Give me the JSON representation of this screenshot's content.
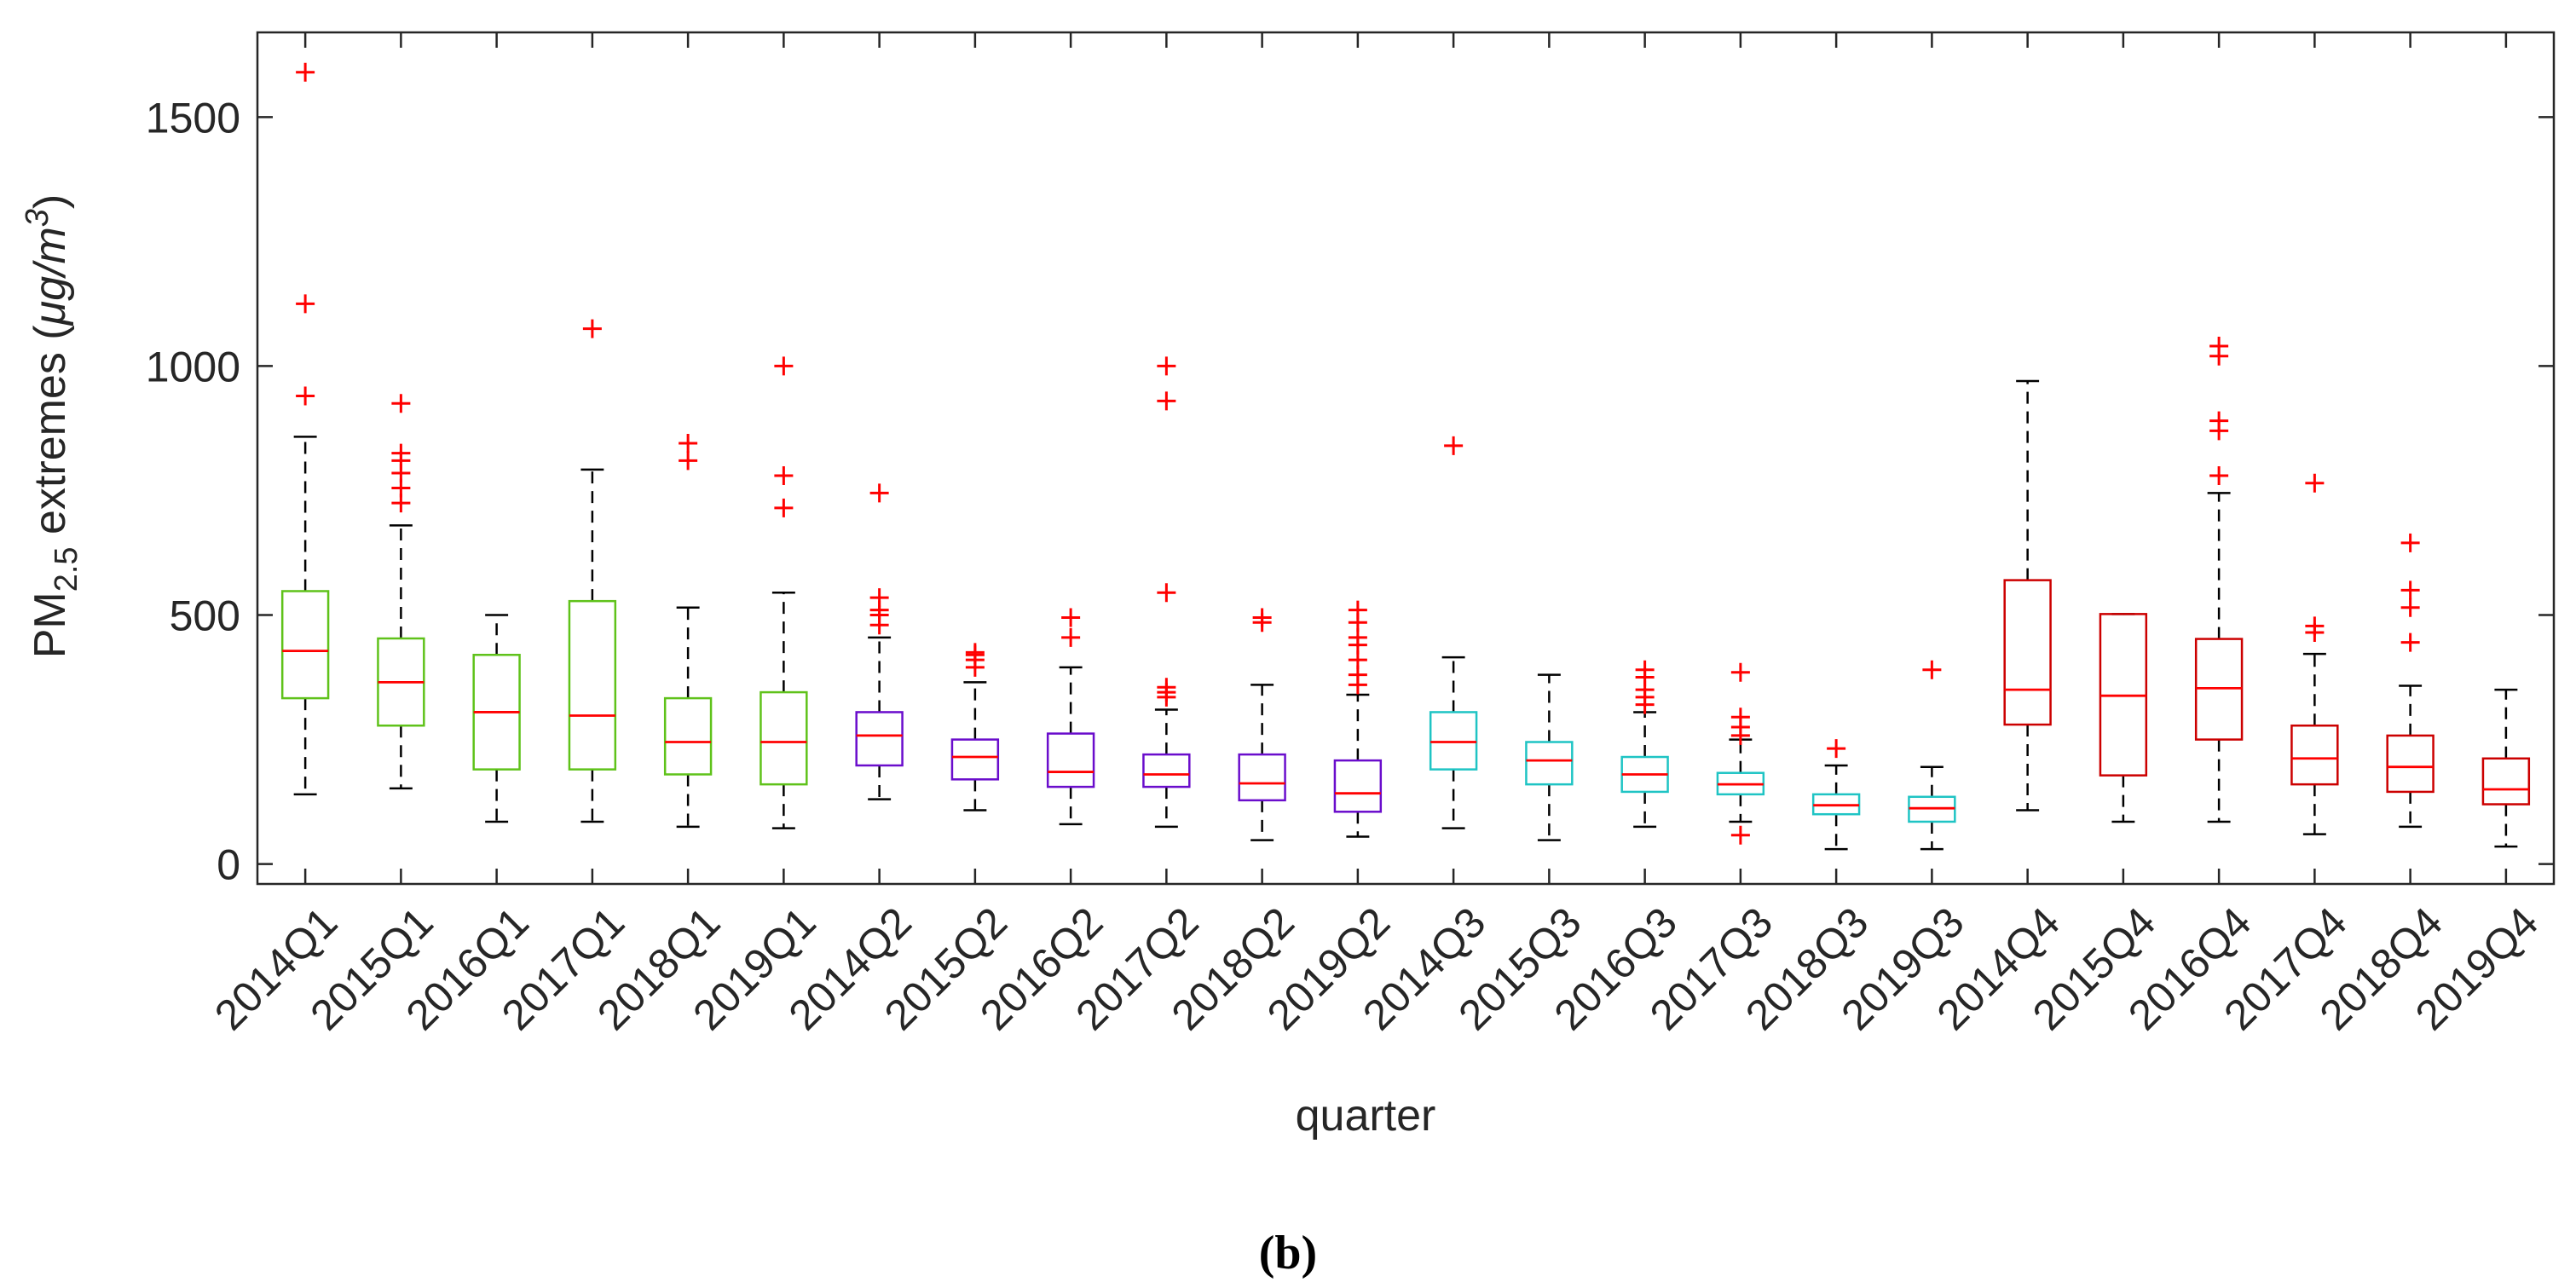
{
  "chart_data": {
    "type": "boxplot",
    "title": "",
    "xlabel": "quarter",
    "ylabel_parts": {
      "base": "PM",
      "sub": "2.5",
      "rest": " extremes (",
      "unit_mu": "μg/m",
      "unit_sup": "3",
      "close": ")"
    },
    "ylim": [
      -40,
      1670
    ],
    "yticks": [
      0,
      500,
      1000,
      1500
    ],
    "grid": false,
    "median_color": "#ff0000",
    "whisker_color": "#000000",
    "outlier_color": "#ff0000",
    "outlier_marker": "+",
    "group_colors": {
      "Q1": "#5fc21a",
      "Q2": "#6a0dcc",
      "Q3": "#1fc4c4",
      "Q4": "#cc0000"
    },
    "categories": [
      "2014Q1",
      "2015Q1",
      "2016Q1",
      "2017Q1",
      "2018Q1",
      "2019Q1",
      "2014Q2",
      "2015Q2",
      "2016Q2",
      "2017Q2",
      "2018Q2",
      "2019Q2",
      "2014Q3",
      "2015Q3",
      "2016Q3",
      "2017Q3",
      "2018Q3",
      "2019Q3",
      "2014Q4",
      "2015Q4",
      "2016Q4",
      "2017Q4",
      "2018Q4",
      "2019Q4"
    ],
    "boxes": [
      {
        "label": "2014Q1",
        "group": "Q1",
        "min": 140,
        "q1": 333,
        "median": 428,
        "q3": 548,
        "max": 858,
        "outliers": [
          940,
          1125,
          1590
        ]
      },
      {
        "label": "2015Q1",
        "group": "Q1",
        "min": 152,
        "q1": 278,
        "median": 365,
        "q3": 453,
        "max": 680,
        "outliers": [
          725,
          755,
          785,
          810,
          825,
          925
        ]
      },
      {
        "label": "2016Q1",
        "group": "Q1",
        "min": 85,
        "q1": 190,
        "median": 305,
        "q3": 420,
        "max": 500,
        "outliers": []
      },
      {
        "label": "2017Q1",
        "group": "Q1",
        "min": 85,
        "q1": 190,
        "median": 298,
        "q3": 528,
        "max": 792,
        "outliers": [
          1075
        ]
      },
      {
        "label": "2018Q1",
        "group": "Q1",
        "min": 75,
        "q1": 180,
        "median": 245,
        "q3": 333,
        "max": 515,
        "outliers": [
          810,
          845
        ]
      },
      {
        "label": "2019Q1",
        "group": "Q1",
        "min": 72,
        "q1": 160,
        "median": 245,
        "q3": 345,
        "max": 545,
        "outliers": [
          715,
          780,
          1000
        ]
      },
      {
        "label": "2014Q2",
        "group": "Q2",
        "min": 130,
        "q1": 198,
        "median": 258,
        "q3": 305,
        "max": 455,
        "outliers": [
          480,
          500,
          510,
          535,
          745
        ]
      },
      {
        "label": "2015Q2",
        "group": "Q2",
        "min": 108,
        "q1": 170,
        "median": 215,
        "q3": 250,
        "max": 365,
        "outliers": [
          395,
          410,
          420,
          425
        ]
      },
      {
        "label": "2016Q2",
        "group": "Q2",
        "min": 80,
        "q1": 155,
        "median": 185,
        "q3": 262,
        "max": 395,
        "outliers": [
          455,
          495
        ]
      },
      {
        "label": "2017Q2",
        "group": "Q2",
        "min": 75,
        "q1": 155,
        "median": 180,
        "q3": 220,
        "max": 310,
        "outliers": [
          335,
          345,
          355,
          545,
          930,
          1000
        ]
      },
      {
        "label": "2018Q2",
        "group": "Q2",
        "min": 48,
        "q1": 128,
        "median": 162,
        "q3": 220,
        "max": 360,
        "outliers": [
          485,
          495
        ]
      },
      {
        "label": "2019Q2",
        "group": "Q2",
        "min": 55,
        "q1": 105,
        "median": 142,
        "q3": 208,
        "max": 340,
        "outliers": [
          360,
          380,
          410,
          440,
          455,
          485,
          510
        ]
      },
      {
        "label": "2014Q3",
        "group": "Q3",
        "min": 72,
        "q1": 190,
        "median": 245,
        "q3": 305,
        "max": 415,
        "outliers": [
          840
        ]
      },
      {
        "label": "2015Q3",
        "group": "Q3",
        "min": 48,
        "q1": 160,
        "median": 208,
        "q3": 245,
        "max": 380,
        "outliers": []
      },
      {
        "label": "2016Q3",
        "group": "Q3",
        "min": 75,
        "q1": 145,
        "median": 180,
        "q3": 215,
        "max": 305,
        "outliers": [
          320,
          335,
          350,
          375,
          390
        ]
      },
      {
        "label": "2017Q3",
        "group": "Q3",
        "min": 85,
        "q1": 140,
        "median": 160,
        "q3": 183,
        "max": 250,
        "outliers": [
          58,
          258,
          275,
          295,
          385
        ]
      },
      {
        "label": "2018Q3",
        "group": "Q3",
        "min": 30,
        "q1": 100,
        "median": 118,
        "q3": 140,
        "max": 198,
        "outliers": [
          232
        ]
      },
      {
        "label": "2019Q3",
        "group": "Q3",
        "min": 30,
        "q1": 85,
        "median": 112,
        "q3": 135,
        "max": 195,
        "outliers": [
          390
        ]
      },
      {
        "label": "2014Q4",
        "group": "Q4",
        "min": 108,
        "q1": 280,
        "median": 350,
        "q3": 570,
        "max": 970,
        "outliers": []
      },
      {
        "label": "2015Q4",
        "group": "Q4",
        "min": 85,
        "q1": 178,
        "median": 338,
        "q3": 502,
        "max": 502,
        "outliers": []
      },
      {
        "label": "2016Q4",
        "group": "Q4",
        "min": 85,
        "q1": 250,
        "median": 353,
        "q3": 452,
        "max": 745,
        "outliers": [
          780,
          870,
          890,
          1020,
          1040
        ]
      },
      {
        "label": "2017Q4",
        "group": "Q4",
        "min": 60,
        "q1": 160,
        "median": 212,
        "q3": 278,
        "max": 422,
        "outliers": [
          465,
          478,
          765
        ]
      },
      {
        "label": "2018Q4",
        "group": "Q4",
        "min": 75,
        "q1": 145,
        "median": 195,
        "q3": 258,
        "max": 358,
        "outliers": [
          445,
          515,
          550,
          645
        ]
      },
      {
        "label": "2019Q4",
        "group": "Q4",
        "min": 35,
        "q1": 120,
        "median": 150,
        "q3": 212,
        "max": 350,
        "outliers": []
      }
    ]
  },
  "panel_label": "(b)"
}
